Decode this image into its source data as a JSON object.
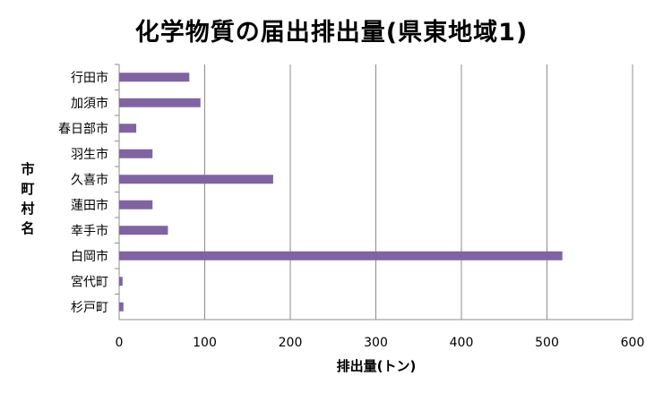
{
  "chart_data": {
    "type": "bar",
    "orientation": "horizontal",
    "title": "化学物質の届出排出量(県東地域1)",
    "xlabel": "排出量(トン)",
    "ylabel": "市町村名",
    "categories": [
      "行田市",
      "加須市",
      "春日部市",
      "羽生市",
      "久喜市",
      "蓮田市",
      "幸手市",
      "白岡市",
      "宮代町",
      "杉戸町"
    ],
    "values": [
      82,
      95,
      20,
      39,
      180,
      39,
      57,
      518,
      4,
      5
    ],
    "xlim": [
      0,
      600
    ],
    "xticks": [
      0,
      100,
      200,
      300,
      400,
      500,
      600
    ],
    "grid": "vertical",
    "legend": "none",
    "bar_color": "#8064A2"
  }
}
